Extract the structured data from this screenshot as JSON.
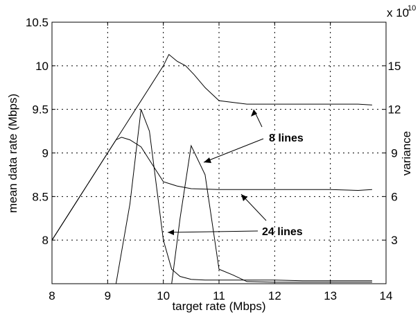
{
  "chart_data": {
    "type": "line",
    "xlabel": "target rate (Mbps)",
    "ylabel": "mean data rate (Mbps)",
    "y2label": "variance",
    "y2_exponent_label": "x 10",
    "y2_exponent_power": "10",
    "xlim": [
      8,
      14
    ],
    "ylim": [
      7.5,
      10.5
    ],
    "y2lim": [
      0,
      18
    ],
    "xticks": [
      "8",
      "9",
      "10",
      "11",
      "12",
      "13",
      "14"
    ],
    "yticks": [
      "8",
      "8.5",
      "9",
      "9.5",
      "10",
      "10.5"
    ],
    "y2ticks": [
      "3",
      "6",
      "9",
      "12",
      "15"
    ],
    "xtick_values": [
      8,
      9,
      10,
      11,
      12,
      13,
      14
    ],
    "ytick_values": [
      8,
      8.5,
      9,
      9.5,
      10,
      10.5
    ],
    "y2tick_values": [
      3,
      6,
      9,
      12,
      15
    ],
    "grid": true,
    "series": [
      {
        "axis": "left",
        "x": [
          8.0,
          8.5,
          9.0,
          9.25,
          9.5,
          9.75,
          10.0,
          10.1,
          10.25,
          10.4,
          10.55,
          10.75,
          11.0,
          11.5,
          12.0,
          12.5,
          13.0,
          13.5,
          13.75
        ],
        "y": [
          8.0,
          8.5,
          9.0,
          9.25,
          9.5,
          9.75,
          10.0,
          10.13,
          10.05,
          10.0,
          9.9,
          9.75,
          9.6,
          9.56,
          9.56,
          9.56,
          9.56,
          9.56,
          9.55
        ]
      },
      {
        "axis": "left",
        "x": [
          8.0,
          8.5,
          9.0,
          9.15,
          9.25,
          9.4,
          9.6,
          9.75,
          10.0,
          10.25,
          10.5,
          11.0,
          11.5,
          12.0,
          12.5,
          13.0,
          13.5,
          13.75
        ],
        "y": [
          8.0,
          8.5,
          9.0,
          9.15,
          9.18,
          9.15,
          9.07,
          8.92,
          8.67,
          8.62,
          8.59,
          8.58,
          8.58,
          8.58,
          8.58,
          8.58,
          8.57,
          8.58
        ]
      },
      {
        "axis": "right",
        "x": [
          9.15,
          9.4,
          9.6,
          9.75,
          10.0,
          10.15,
          10.3,
          10.5,
          10.75,
          11.0,
          11.5,
          12.0,
          12.5,
          13.0,
          13.5,
          13.75
        ],
        "y": [
          0.0,
          5.5,
          12.0,
          10.5,
          3.0,
          1.0,
          0.5,
          0.3,
          0.25,
          0.25,
          0.25,
          0.25,
          0.2,
          0.2,
          0.2,
          0.2
        ]
      },
      {
        "axis": "right",
        "x": [
          10.15,
          10.3,
          10.5,
          10.75,
          11.0,
          11.25,
          11.5,
          12.0,
          12.5,
          13.0,
          13.5,
          13.75
        ],
        "y": [
          0.0,
          4.5,
          9.5,
          7.5,
          1.0,
          0.6,
          0.15,
          0.1,
          0.1,
          0.1,
          0.1,
          0.1
        ]
      }
    ],
    "annotations": [
      {
        "text": "8 lines"
      },
      {
        "text": "24 lines"
      }
    ]
  }
}
